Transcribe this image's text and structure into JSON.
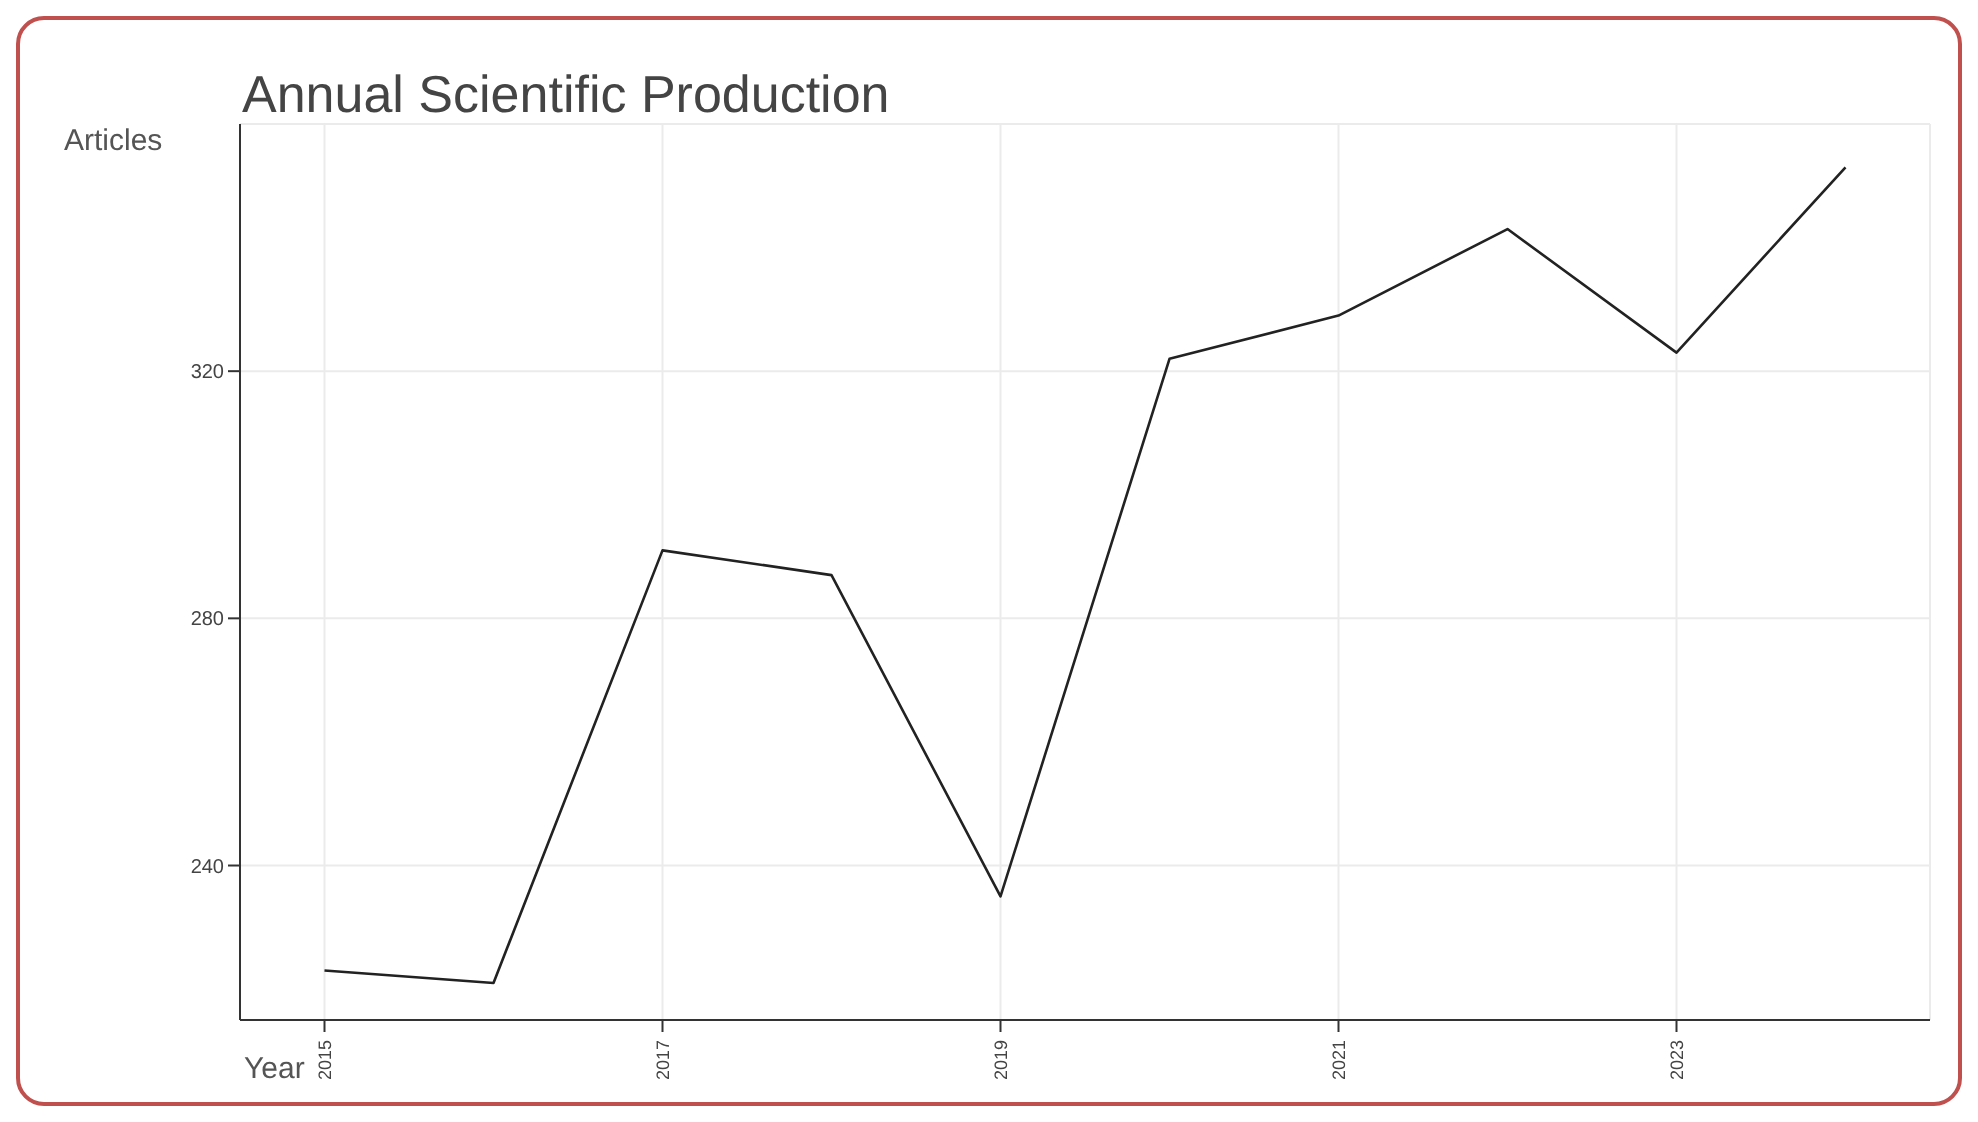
{
  "chart_data": {
    "type": "line",
    "title": "Annual Scientific Production",
    "xlabel": "Year",
    "ylabel": "Articles",
    "x": [
      2015,
      2016,
      2017,
      2018,
      2019,
      2020,
      2021,
      2022,
      2023,
      2024
    ],
    "series": [
      {
        "color": "#222222",
        "values": [
          223,
          221,
          291,
          287,
          235,
          322,
          329,
          343,
          323,
          353
        ]
      }
    ],
    "xlim": [
      2014.5,
      2024.5
    ],
    "xticks": [
      2015,
      2017,
      2019,
      2021,
      2023
    ],
    "ylim": [
      215,
      360
    ],
    "yticks": [
      240,
      280,
      320
    ],
    "grid": true,
    "legend": false,
    "marker": "none",
    "line_style": "solid"
  }
}
